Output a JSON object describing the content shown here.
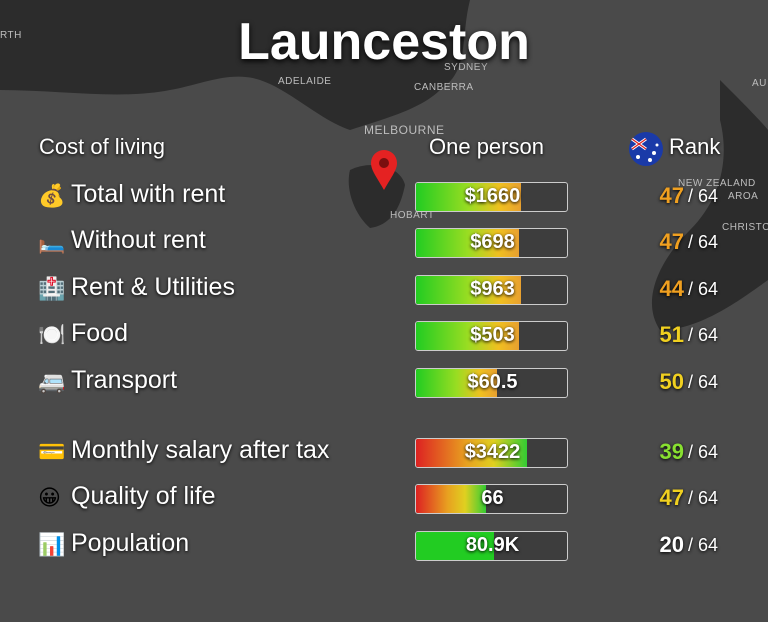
{
  "title": "Launceston",
  "map_labels": [
    "RTH",
    "ADELAIDE",
    "SYDNEY",
    "CANBERRA",
    "MELBOURNE",
    "HOBART",
    "NEW ZEALAND",
    "CHRISTCH",
    "AU",
    "AROA"
  ],
  "headers": {
    "left": "Cost of living",
    "middle": "One person",
    "right": "Rank"
  },
  "rows": [
    {
      "icon": "💰",
      "label": "Total with rent",
      "value": "$1660",
      "rank": 47,
      "total": "/ 64"
    },
    {
      "icon": "🛏️",
      "label": "Without rent",
      "value": "$698",
      "rank": 47,
      "total": "/ 64"
    },
    {
      "icon": "🏥",
      "label": "Rent & Utilities",
      "value": "$963",
      "rank": 44,
      "total": "/ 64"
    },
    {
      "icon": "🍽️",
      "label": "Food",
      "value": "$503",
      "rank": 51,
      "total": "/ 64"
    },
    {
      "icon": "🚐",
      "label": "Transport",
      "value": "$60.5",
      "rank": 50,
      "total": "/ 64"
    },
    {
      "icon": "💳",
      "label": "Monthly salary after tax",
      "value": "$3422",
      "rank": 39,
      "total": "/ 64"
    },
    {
      "icon": "😀",
      "label": "Quality of life",
      "value": "66",
      "rank": 47,
      "total": "/ 64"
    },
    {
      "icon": "📊",
      "label": "Population",
      "value": "80.9K",
      "rank": 20,
      "total": "/ 64"
    }
  ]
}
